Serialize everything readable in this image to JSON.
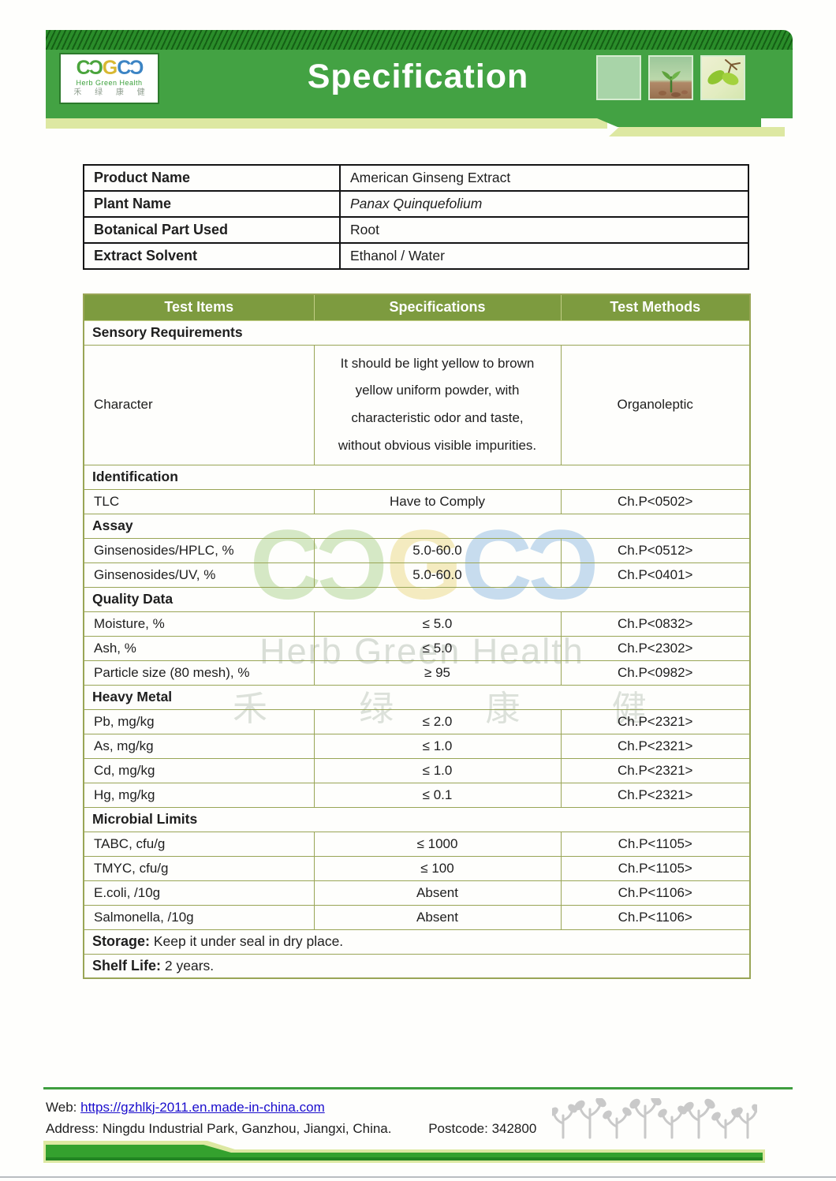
{
  "colors": {
    "banner_green": "#43a243",
    "hatch_dark": "#145f14",
    "hatch_light": "#2a8c2a",
    "strip_pale": "#dde8a2",
    "header_olive": "#7d9b3f",
    "table_border": "#99a556",
    "link_blue": "#1a0dcd",
    "band_green": "#34a12e",
    "text_dark": "#1e1e1e"
  },
  "header": {
    "title": "Specification",
    "logo": {
      "glyph_left": "CƆ",
      "glyph_mid": "G",
      "glyph_right": "CƆ",
      "name": "Herb Green Health",
      "cn": "禾 绿 康 健"
    }
  },
  "product_info": {
    "rows": [
      {
        "label": "Product Name",
        "value": "American Ginseng Extract"
      },
      {
        "label": "Plant Name",
        "value": "Panax Quinquefolium"
      },
      {
        "label": "Botanical Part Used",
        "value": "Root"
      },
      {
        "label": "Extract Solvent",
        "value": "Ethanol / Water"
      }
    ]
  },
  "spec_table": {
    "headers": [
      "Test Items",
      "Specifications",
      "Test Methods"
    ],
    "rows": [
      {
        "type": "section",
        "label": "Sensory Requirements"
      },
      {
        "type": "data",
        "tall": true,
        "item": "Character",
        "spec": "It should be light yellow to brown yellow uniform powder, with characteristic odor and taste, without obvious visible impurities.",
        "method": "Organoleptic"
      },
      {
        "type": "section",
        "label": "Identification"
      },
      {
        "type": "data",
        "item": "TLC",
        "spec": "Have to Comply",
        "method": "Ch.P<0502>"
      },
      {
        "type": "section",
        "label": "Assay"
      },
      {
        "type": "data",
        "item": "Ginsenosides/HPLC, %",
        "spec": "5.0-60.0",
        "method": "Ch.P<0512>"
      },
      {
        "type": "data",
        "item": "Ginsenosides/UV, %",
        "spec": "5.0-60.0",
        "method": "Ch.P<0401>"
      },
      {
        "type": "section",
        "label": "Quality Data"
      },
      {
        "type": "data",
        "item": "Moisture, %",
        "spec": "≤ 5.0",
        "method": "Ch.P<0832>"
      },
      {
        "type": "data",
        "item": "Ash, %",
        "spec": "≤ 5.0",
        "method": "Ch.P<2302>"
      },
      {
        "type": "data",
        "item": "Particle size (80 mesh), %",
        "spec": "≥ 95",
        "method": "Ch.P<0982>"
      },
      {
        "type": "section",
        "label": "Heavy Metal"
      },
      {
        "type": "data",
        "item": "Pb, mg/kg",
        "spec": "≤ 2.0",
        "method": "Ch.P<2321>"
      },
      {
        "type": "data",
        "item": "As, mg/kg",
        "spec": "≤ 1.0",
        "method": "Ch.P<2321>"
      },
      {
        "type": "data",
        "item": "Cd, mg/kg",
        "spec": "≤ 1.0",
        "method": "Ch.P<2321>"
      },
      {
        "type": "data",
        "item": "Hg, mg/kg",
        "spec": "≤ 0.1",
        "method": "Ch.P<2321>"
      },
      {
        "type": "section",
        "label": "Microbial Limits"
      },
      {
        "type": "data",
        "item": "TABC, cfu/g",
        "spec": "≤ 1000",
        "method": "Ch.P<1105>"
      },
      {
        "type": "data",
        "item": "TMYC, cfu/g",
        "spec": "≤ 100",
        "method": "Ch.P<1105>"
      },
      {
        "type": "data",
        "item": "E.coli, /10g",
        "spec": "Absent",
        "method": "Ch.P<1106>"
      },
      {
        "type": "data",
        "item": "Salmonella, /10g",
        "spec": "Absent",
        "method": "Ch.P<1106>"
      },
      {
        "type": "note",
        "label": "Storage:",
        "text": "Keep it under seal in dry place."
      },
      {
        "type": "note",
        "label": "Shelf Life:",
        "text": "2 years."
      }
    ]
  },
  "watermark": {
    "glyph_left": "CƆ",
    "glyph_mid": "G",
    "glyph_right": "CƆ",
    "name": "Herb Green Health",
    "cn": "禾 绿 康 健"
  },
  "footer": {
    "web_label": "Web:",
    "web_url": "https://gzhlkj-2011.en.made-in-china.com",
    "address_label": "Address:",
    "address": "Ningdu Industrial Park, Ganzhou, Jiangxi, China.",
    "postcode_label": "Postcode:",
    "postcode": "342800"
  }
}
